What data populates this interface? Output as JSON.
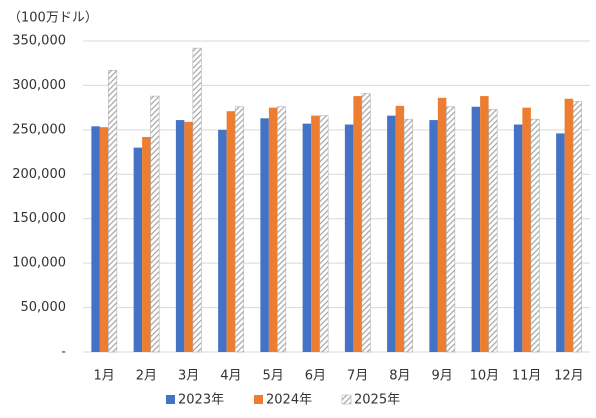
{
  "chart_data": {
    "type": "bar",
    "unit_label": "（100万ドル）",
    "categories": [
      "1月",
      "2月",
      "3月",
      "4月",
      "5月",
      "6月",
      "7月",
      "8月",
      "9月",
      "10月",
      "11月",
      "12月"
    ],
    "series": [
      {
        "name": "2023年",
        "color": "#4472c4",
        "values": [
          254000,
          230000,
          261000,
          250000,
          263000,
          257000,
          256000,
          266000,
          261000,
          276000,
          256000,
          246000
        ]
      },
      {
        "name": "2024年",
        "color": "#ed7d31",
        "values": [
          253000,
          242000,
          259000,
          271000,
          275000,
          266000,
          288000,
          277000,
          286000,
          288000,
          275000,
          285000
        ]
      },
      {
        "name": "2025年",
        "color": "#a5a5a5",
        "pattern": "hatch",
        "values": [
          317000,
          288000,
          342000,
          276000,
          276000,
          266000,
          291000,
          262000,
          276000,
          273000,
          262000,
          282000
        ]
      }
    ],
    "ylim": [
      0,
      350000
    ],
    "yticks": [
      {
        "value": 0,
        "label": "-"
      },
      {
        "value": 50000,
        "label": "50,000"
      },
      {
        "value": 100000,
        "label": "100,000"
      },
      {
        "value": 150000,
        "label": "150,000"
      },
      {
        "value": 200000,
        "label": "200,000"
      },
      {
        "value": 250000,
        "label": "250,000"
      },
      {
        "value": 300000,
        "label": "300,000"
      },
      {
        "value": 350000,
        "label": "350,000"
      }
    ],
    "grid": true,
    "legend": "bottom"
  }
}
